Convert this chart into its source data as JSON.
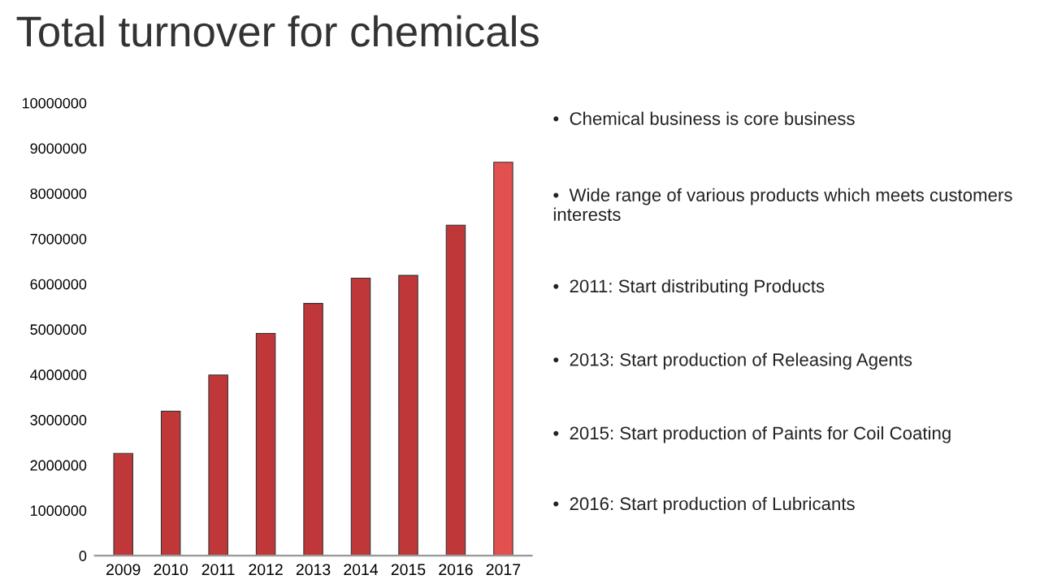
{
  "chart_data": {
    "type": "bar",
    "title": "Total turnover for chemicals",
    "categories": [
      "2009",
      "2010",
      "2011",
      "2012",
      "2013",
      "2014",
      "2015",
      "2016",
      "2017"
    ],
    "values": [
      2260000,
      3190000,
      3990000,
      4910000,
      5570000,
      6130000,
      6190000,
      7300000,
      8690000
    ],
    "colors": [
      "#c0373a",
      "#c0373a",
      "#c0373a",
      "#c0373a",
      "#c0373a",
      "#c0373a",
      "#c0373a",
      "#c0373a",
      "#e2504f"
    ],
    "ylim": [
      0,
      10000000
    ],
    "yticks": [
      0,
      1000000,
      2000000,
      3000000,
      4000000,
      5000000,
      6000000,
      7000000,
      8000000,
      9000000,
      10000000
    ],
    "grid": false,
    "legend": false,
    "annotations": [
      "•  Chemical business is core business",
      "•  Wide range of various products which meets customers interests",
      "•  2011: Start distributing Products",
      "•  2013: Start production of Releasing Agents",
      "•  2015: Start production of Paints for Coil Coating",
      "•  2016: Start production of Lubricants"
    ]
  }
}
